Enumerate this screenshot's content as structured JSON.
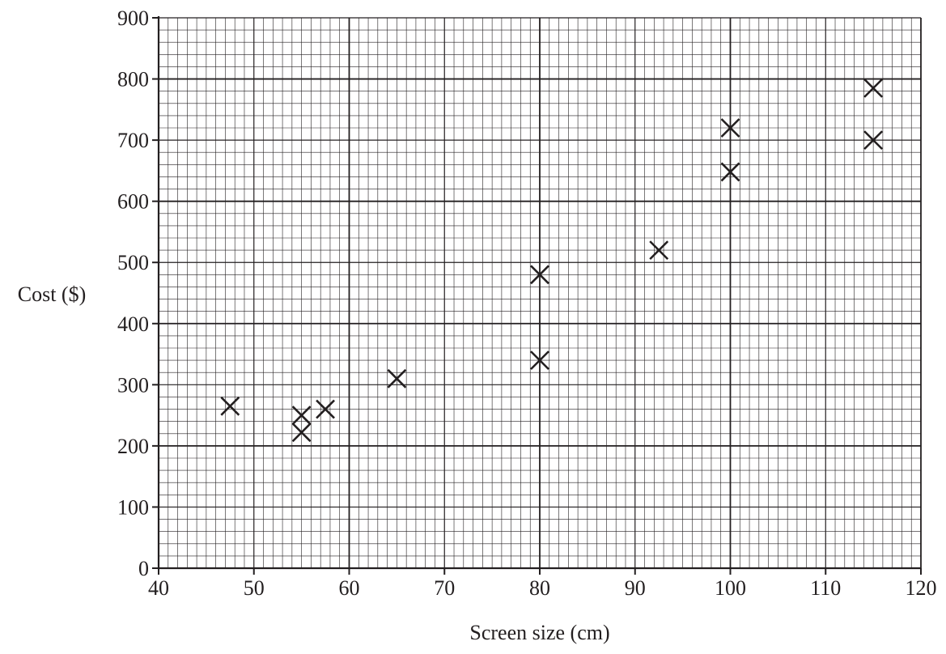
{
  "chart_data": {
    "type": "scatter",
    "title": "",
    "xlabel": "Screen size (cm)",
    "ylabel": "Cost ($)",
    "xlim": [
      40,
      120
    ],
    "ylim": [
      0,
      900
    ],
    "x_ticks": [
      40,
      50,
      60,
      70,
      80,
      90,
      100,
      110,
      120
    ],
    "y_ticks": [
      0,
      100,
      200,
      300,
      400,
      500,
      600,
      700,
      800,
      900
    ],
    "x_minor_step": 1,
    "y_minor_step": 20,
    "x_major_grid_step": 20,
    "y_major_grid_step": 200,
    "grid": true,
    "marker": "cross",
    "color": "#231f20",
    "points": [
      {
        "x": 47.5,
        "y": 265
      },
      {
        "x": 55,
        "y": 250
      },
      {
        "x": 55,
        "y": 222
      },
      {
        "x": 57.5,
        "y": 260
      },
      {
        "x": 65,
        "y": 310
      },
      {
        "x": 80,
        "y": 480
      },
      {
        "x": 80,
        "y": 340
      },
      {
        "x": 92.5,
        "y": 520
      },
      {
        "x": 100,
        "y": 720
      },
      {
        "x": 100,
        "y": 648
      },
      {
        "x": 115,
        "y": 785
      },
      {
        "x": 115,
        "y": 700
      }
    ]
  }
}
